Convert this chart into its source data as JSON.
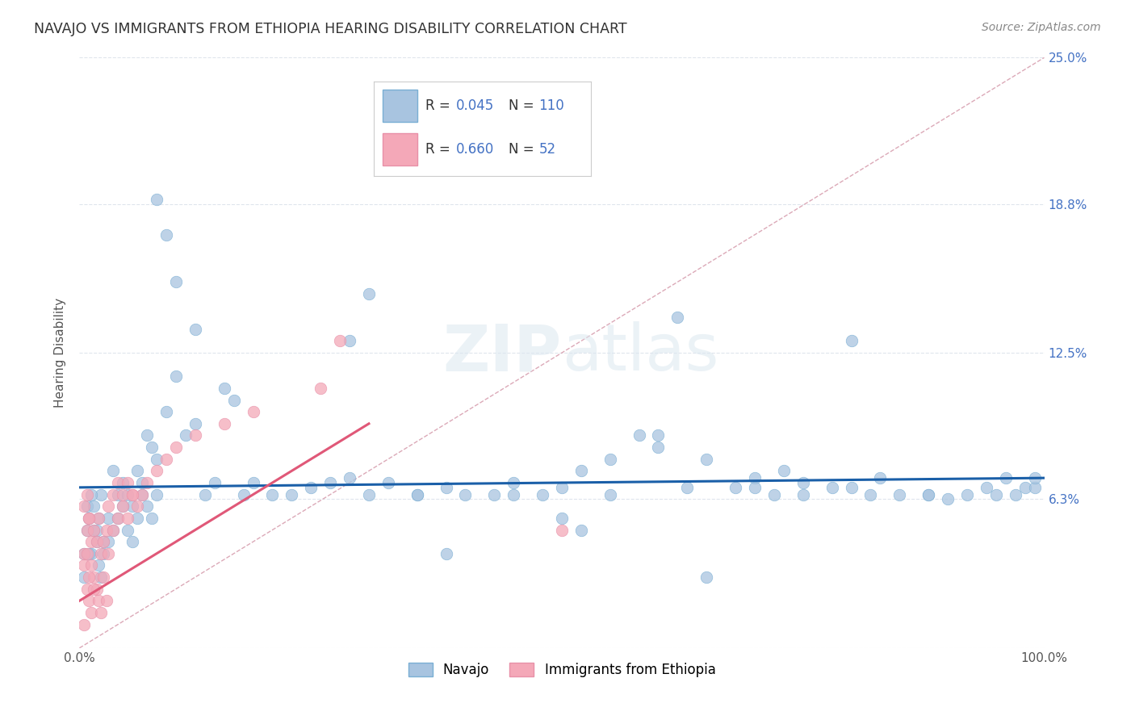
{
  "title": "NAVAJO VS IMMIGRANTS FROM ETHIOPIA HEARING DISABILITY CORRELATION CHART",
  "source": "Source: ZipAtlas.com",
  "ylabel": "Hearing Disability",
  "xlim": [
    0.0,
    1.0
  ],
  "ylim": [
    0.0,
    0.25
  ],
  "navajo_color": "#a8c4e0",
  "navajo_edge_color": "#7aafd4",
  "ethiopia_color": "#f4a8b8",
  "ethiopia_edge_color": "#e890a8",
  "navajo_line_color": "#1a5fa8",
  "ethiopia_line_color": "#e05878",
  "diag_line_color": "#d8a0b0",
  "watermark_color": "#dce8f0",
  "legend_text_color": "#333333",
  "legend_value_color": "#4472c4",
  "right_axis_color": "#4472c4",
  "title_color": "#333333",
  "source_color": "#888888",
  "grid_color": "#d8dfe8",
  "navajo_x": [
    0.005,
    0.01,
    0.015,
    0.02,
    0.025,
    0.008,
    0.012,
    0.018,
    0.022,
    0.03,
    0.005,
    0.01,
    0.015,
    0.02,
    0.025,
    0.008,
    0.012,
    0.018,
    0.022,
    0.03,
    0.035,
    0.04,
    0.045,
    0.05,
    0.055,
    0.06,
    0.065,
    0.07,
    0.075,
    0.08,
    0.035,
    0.04,
    0.045,
    0.05,
    0.055,
    0.06,
    0.065,
    0.07,
    0.075,
    0.08,
    0.09,
    0.1,
    0.11,
    0.12,
    0.13,
    0.14,
    0.15,
    0.16,
    0.17,
    0.18,
    0.2,
    0.22,
    0.24,
    0.26,
    0.28,
    0.3,
    0.32,
    0.35,
    0.38,
    0.4,
    0.43,
    0.45,
    0.48,
    0.5,
    0.52,
    0.55,
    0.58,
    0.6,
    0.63,
    0.65,
    0.68,
    0.7,
    0.73,
    0.75,
    0.78,
    0.8,
    0.83,
    0.85,
    0.88,
    0.9,
    0.92,
    0.94,
    0.96,
    0.97,
    0.98,
    0.99,
    0.99,
    0.3,
    0.28,
    0.1,
    0.12,
    0.08,
    0.09,
    0.35,
    0.6,
    0.55,
    0.62,
    0.7,
    0.75,
    0.5,
    0.8,
    0.38,
    0.45,
    0.52,
    0.65,
    0.72,
    0.82,
    0.88,
    0.95
  ],
  "navajo_y": [
    0.04,
    0.055,
    0.05,
    0.035,
    0.045,
    0.06,
    0.04,
    0.05,
    0.065,
    0.045,
    0.03,
    0.04,
    0.06,
    0.055,
    0.04,
    0.05,
    0.065,
    0.045,
    0.03,
    0.055,
    0.075,
    0.065,
    0.07,
    0.065,
    0.06,
    0.075,
    0.07,
    0.09,
    0.085,
    0.08,
    0.05,
    0.055,
    0.06,
    0.05,
    0.045,
    0.055,
    0.065,
    0.06,
    0.055,
    0.065,
    0.1,
    0.115,
    0.09,
    0.095,
    0.065,
    0.07,
    0.11,
    0.105,
    0.065,
    0.07,
    0.065,
    0.065,
    0.068,
    0.07,
    0.072,
    0.065,
    0.07,
    0.065,
    0.068,
    0.065,
    0.065,
    0.07,
    0.065,
    0.068,
    0.075,
    0.065,
    0.09,
    0.085,
    0.068,
    0.08,
    0.068,
    0.072,
    0.075,
    0.07,
    0.068,
    0.068,
    0.072,
    0.065,
    0.065,
    0.063,
    0.065,
    0.068,
    0.072,
    0.065,
    0.068,
    0.068,
    0.072,
    0.15,
    0.13,
    0.155,
    0.135,
    0.19,
    0.175,
    0.065,
    0.09,
    0.08,
    0.14,
    0.068,
    0.065,
    0.055,
    0.13,
    0.04,
    0.065,
    0.05,
    0.03,
    0.065,
    0.065,
    0.065,
    0.065
  ],
  "ethiopia_x": [
    0.005,
    0.008,
    0.01,
    0.012,
    0.015,
    0.018,
    0.02,
    0.022,
    0.025,
    0.028,
    0.005,
    0.008,
    0.01,
    0.012,
    0.015,
    0.018,
    0.02,
    0.022,
    0.025,
    0.028,
    0.005,
    0.008,
    0.01,
    0.012,
    0.015,
    0.005,
    0.008,
    0.01,
    0.03,
    0.035,
    0.04,
    0.045,
    0.05,
    0.055,
    0.06,
    0.065,
    0.07,
    0.03,
    0.035,
    0.04,
    0.045,
    0.05,
    0.055,
    0.08,
    0.09,
    0.1,
    0.12,
    0.15,
    0.18,
    0.25,
    0.27,
    0.5
  ],
  "ethiopia_y": [
    0.01,
    0.025,
    0.02,
    0.015,
    0.03,
    0.025,
    0.02,
    0.015,
    0.03,
    0.02,
    0.04,
    0.05,
    0.055,
    0.045,
    0.05,
    0.045,
    0.055,
    0.04,
    0.045,
    0.05,
    0.035,
    0.04,
    0.03,
    0.035,
    0.025,
    0.06,
    0.065,
    0.055,
    0.04,
    0.05,
    0.055,
    0.06,
    0.055,
    0.065,
    0.06,
    0.065,
    0.07,
    0.06,
    0.065,
    0.07,
    0.065,
    0.07,
    0.065,
    0.075,
    0.08,
    0.085,
    0.09,
    0.095,
    0.1,
    0.11,
    0.13,
    0.05
  ],
  "navajo_line_x": [
    0.0,
    1.0
  ],
  "navajo_line_y": [
    0.068,
    0.072
  ],
  "ethiopia_line_x": [
    0.0,
    0.3
  ],
  "ethiopia_line_y": [
    0.02,
    0.095
  ]
}
